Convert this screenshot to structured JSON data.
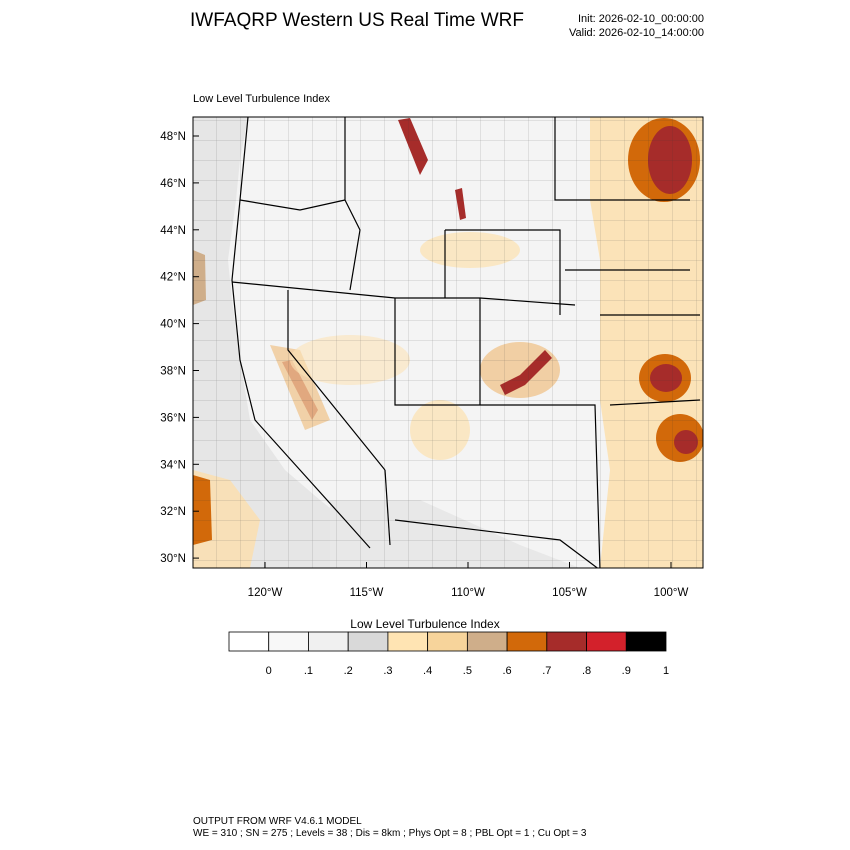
{
  "header": {
    "title": "IWFAQRP Western US Real Time WRF",
    "init": "Init: 2026-02-10_00:00:00",
    "valid": "Valid: 2026-02-10_14:00:00"
  },
  "plot": {
    "field_title": "Low Level Turbulence Index",
    "lat_labels": [
      "48°N",
      "46°N",
      "44°N",
      "42°N",
      "40°N",
      "38°N",
      "36°N",
      "34°N",
      "32°N",
      "30°N"
    ],
    "lon_labels": [
      "120°W",
      "115°W",
      "110°W",
      "105°W",
      "100°W"
    ]
  },
  "colorbar": {
    "title": "Low Level Turbulence Index",
    "colors": [
      "#ffffff",
      "#f8f8f8",
      "#f0f0f0",
      "#d9d9d9",
      "#ffe4b3",
      "#f7d49b",
      "#cfae8a",
      "#d2690a",
      "#a62c2a",
      "#d3212b",
      "#000000"
    ],
    "tick_labels": [
      "0",
      ".1",
      ".2",
      ".3",
      ".4",
      ".5",
      ".6",
      ".7",
      ".8",
      ".9",
      "1"
    ]
  },
  "footer": {
    "line1": "OUTPUT FROM WRF V4.6.1 MODEL",
    "line2": "WE = 310 ; SN = 275 ; Levels = 38 ; Dis = 8km ; Phys Opt = 8 ; PBL Opt = 1 ; Cu Opt = 3"
  }
}
